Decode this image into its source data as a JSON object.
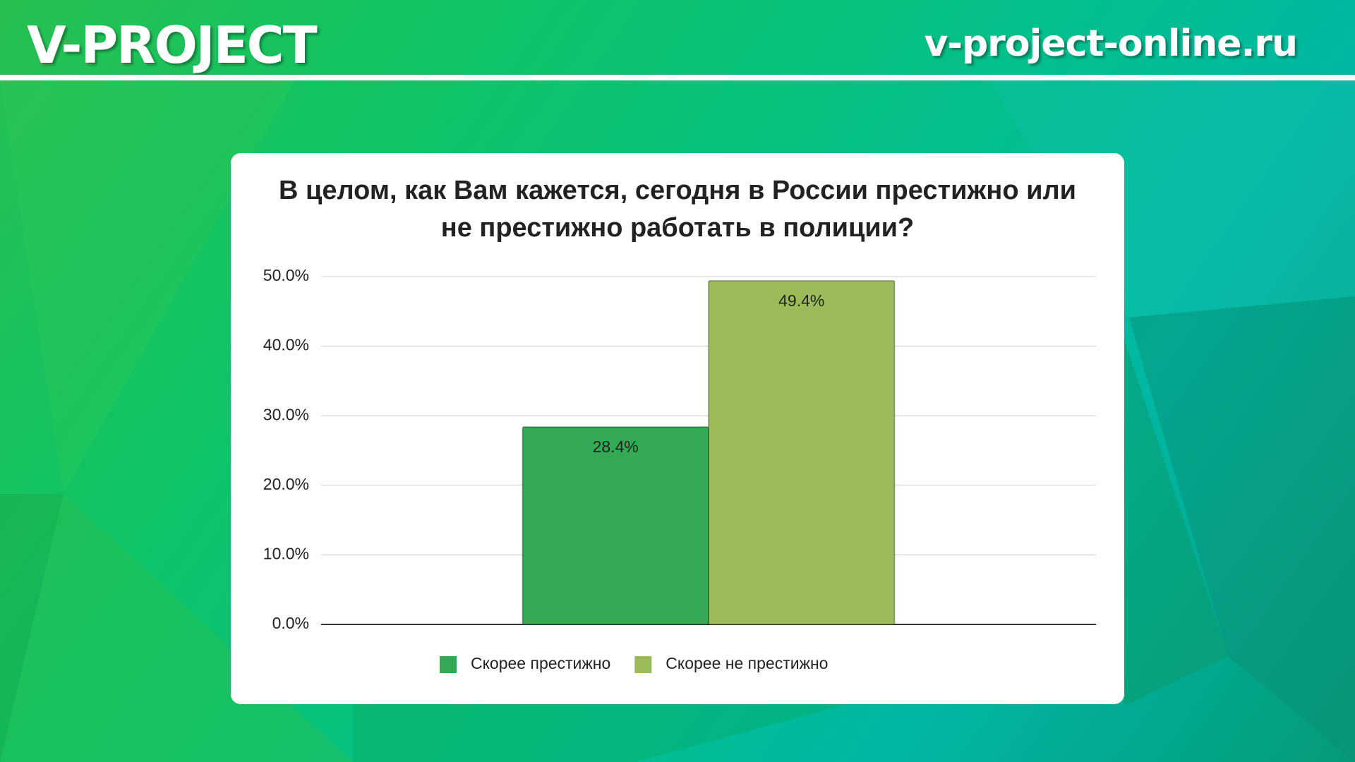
{
  "header": {
    "brand": "V-PROJECT",
    "site": "v-project-online.ru"
  },
  "chart_data": {
    "type": "bar",
    "title": "В целом, как Вам кажется, сегодня в России престижно или не престижно работать в полиции?",
    "categories": [
      null
    ],
    "series": [
      {
        "name": "Скорее престижно",
        "color": "#34a853",
        "values": [
          28.4
        ],
        "value_labels": [
          "28.4%"
        ]
      },
      {
        "name": "Скорее не престижно",
        "color": "#9bbb59",
        "values": [
          49.4
        ],
        "value_labels": [
          "49.4%"
        ]
      }
    ],
    "ylim": [
      0,
      50
    ],
    "yticks": [
      {
        "value": 0,
        "label": "0.0%"
      },
      {
        "value": 10,
        "label": "10.0%"
      },
      {
        "value": 20,
        "label": "20.0%"
      },
      {
        "value": 30,
        "label": "30.0%"
      },
      {
        "value": 40,
        "label": "40.0%"
      },
      {
        "value": 50,
        "label": "50.0%"
      }
    ],
    "grid": true,
    "legend": "bottom"
  }
}
